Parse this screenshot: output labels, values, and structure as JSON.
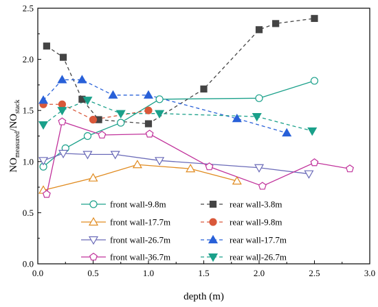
{
  "chart_data": {
    "type": "line",
    "xlabel": "depth (m)",
    "ylabel": {
      "main": "NO",
      "sub1": "measured",
      "sep": "/NO",
      "sub2": "stack"
    },
    "xlim": [
      0.0,
      3.0
    ],
    "ylim": [
      0.0,
      2.5
    ],
    "xticks": [
      "0.0",
      "0.5",
      "1.0",
      "1.5",
      "2.0",
      "2.5",
      "3.0"
    ],
    "yticks": [
      "0.0",
      "0.5",
      "1.0",
      "1.5",
      "2.0",
      "2.5"
    ],
    "grid": false,
    "legend_placement": "bottom-center",
    "series": [
      {
        "name": "front wall-9.8m",
        "color": "#1aa08a",
        "marker": "circle",
        "filled": false,
        "dash": "solid",
        "x": [
          0.05,
          0.25,
          0.45,
          0.75,
          1.1,
          2.0,
          2.5
        ],
        "y": [
          0.95,
          1.13,
          1.25,
          1.38,
          1.61,
          1.62,
          1.79
        ]
      },
      {
        "name": "front wall-17.7m",
        "color": "#e08a1e",
        "marker": "triangle-up",
        "filled": false,
        "dash": "solid",
        "x": [
          0.05,
          0.5,
          0.9,
          1.38,
          1.8
        ],
        "y": [
          0.72,
          0.84,
          0.97,
          0.93,
          0.81
        ]
      },
      {
        "name": "front wall-26.7m",
        "color": "#6a6ab8",
        "marker": "triangle-down",
        "filled": false,
        "dash": "solid",
        "x": [
          0.05,
          0.23,
          0.45,
          0.7,
          1.1,
          2.0,
          2.45
        ],
        "y": [
          1.01,
          1.08,
          1.07,
          1.07,
          1.01,
          0.94,
          0.88
        ]
      },
      {
        "name": "front wall-36.7m",
        "color": "#c0309a",
        "marker": "pentagon",
        "filled": false,
        "dash": "solid",
        "x": [
          0.08,
          0.22,
          0.58,
          1.01,
          1.55,
          2.03,
          2.5,
          2.82
        ],
        "y": [
          0.68,
          1.39,
          1.26,
          1.27,
          0.95,
          0.76,
          0.99,
          0.93
        ]
      },
      {
        "name": "rear wall-3.8m",
        "color": "#444444",
        "marker": "square",
        "filled": true,
        "dash": "dashed",
        "x": [
          0.08,
          0.23,
          0.4,
          0.55,
          1.0,
          1.5,
          2.0,
          2.15,
          2.5
        ],
        "y": [
          2.13,
          2.02,
          1.61,
          1.41,
          1.37,
          1.71,
          2.29,
          2.35,
          2.4
        ]
      },
      {
        "name": "rear wall-9.8m",
        "color": "#d9583a",
        "marker": "circle",
        "filled": true,
        "dash": "dashed",
        "x": [
          0.05,
          0.22,
          0.5,
          1.0
        ],
        "y": [
          1.56,
          1.56,
          1.41,
          1.5
        ]
      },
      {
        "name": "rear wall-17.7m",
        "color": "#2860d8",
        "marker": "triangle-up",
        "filled": true,
        "dash": "dashed",
        "x": [
          0.05,
          0.22,
          0.4,
          0.68,
          1.0,
          1.8,
          2.25
        ],
        "y": [
          1.6,
          1.8,
          1.8,
          1.65,
          1.65,
          1.42,
          1.28
        ]
      },
      {
        "name": "rear wall-26.7m",
        "color": "#1aa08a",
        "marker": "triangle-down",
        "filled": true,
        "dash": "dashed",
        "x": [
          0.05,
          0.22,
          0.45,
          0.75,
          1.1,
          1.98,
          2.48
        ],
        "y": [
          1.36,
          1.5,
          1.6,
          1.47,
          1.47,
          1.44,
          1.3
        ]
      }
    ]
  }
}
